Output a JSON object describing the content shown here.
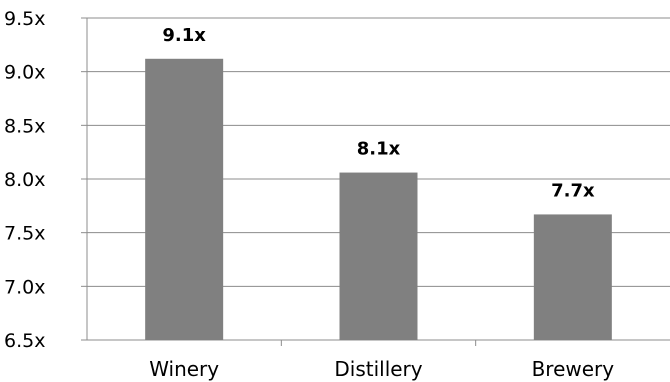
{
  "chart_data": {
    "type": "bar",
    "title": "",
    "xlabel": "",
    "ylabel": "",
    "categories": [
      "Winery",
      "Distillery",
      "Brewery"
    ],
    "values": [
      9.12,
      8.06,
      7.67
    ],
    "data_labels": [
      "9.1x",
      "8.1x",
      "7.7x"
    ],
    "ylim": [
      6.5,
      9.5
    ],
    "y_ticks": [
      6.5,
      7.0,
      7.5,
      8.0,
      8.5,
      9.0,
      9.5
    ],
    "y_tick_labels": [
      "6.5x",
      "7.0x",
      "7.5x",
      "8.0x",
      "8.5x",
      "9.0x",
      "9.5x"
    ],
    "grid": true,
    "legend": "none",
    "colors": {
      "bar": "#808080",
      "grid": "#8c8c8c",
      "axis": "#8c8c8c",
      "text": "#000000"
    }
  }
}
